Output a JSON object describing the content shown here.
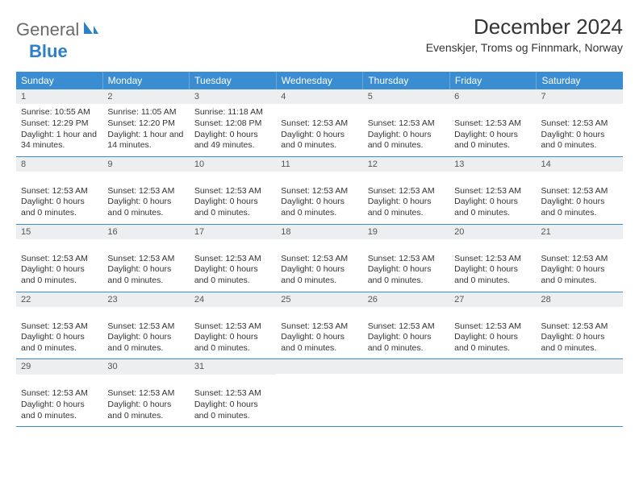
{
  "brand": {
    "word1": "General",
    "word2": "Blue"
  },
  "title": "December 2024",
  "subtitle": "Evenskjer, Troms og Finnmark, Norway",
  "colors": {
    "header_bg": "#3a8dd0",
    "header_text": "#ffffff",
    "daynum_bg": "#eceeef",
    "rule": "#3a8dd0",
    "brand_gray": "#6a6a6a",
    "brand_blue": "#2d7fc7",
    "body_text": "#333333",
    "page_bg": "#ffffff"
  },
  "typography": {
    "title_fontsize": 26,
    "subtitle_fontsize": 14,
    "dayhead_fontsize": 12,
    "cell_fontsize": 10.5,
    "logo_fontsize": 22
  },
  "day_names": [
    "Sunday",
    "Monday",
    "Tuesday",
    "Wednesday",
    "Thursday",
    "Friday",
    "Saturday"
  ],
  "weeks": [
    [
      {
        "n": "1",
        "lines": [
          "Sunrise: 10:55 AM",
          "Sunset: 12:29 PM",
          "Daylight: 1 hour and 34 minutes."
        ]
      },
      {
        "n": "2",
        "lines": [
          "Sunrise: 11:05 AM",
          "Sunset: 12:20 PM",
          "Daylight: 1 hour and 14 minutes."
        ]
      },
      {
        "n": "3",
        "lines": [
          "Sunrise: 11:18 AM",
          "Sunset: 12:08 PM",
          "Daylight: 0 hours and 49 minutes."
        ]
      },
      {
        "n": "4",
        "lines": [
          "",
          "Sunset: 12:53 AM",
          "Daylight: 0 hours and 0 minutes."
        ]
      },
      {
        "n": "5",
        "lines": [
          "",
          "Sunset: 12:53 AM",
          "Daylight: 0 hours and 0 minutes."
        ]
      },
      {
        "n": "6",
        "lines": [
          "",
          "Sunset: 12:53 AM",
          "Daylight: 0 hours and 0 minutes."
        ]
      },
      {
        "n": "7",
        "lines": [
          "",
          "Sunset: 12:53 AM",
          "Daylight: 0 hours and 0 minutes."
        ]
      }
    ],
    [
      {
        "n": "8",
        "lines": [
          "",
          "Sunset: 12:53 AM",
          "Daylight: 0 hours and 0 minutes."
        ]
      },
      {
        "n": "9",
        "lines": [
          "",
          "Sunset: 12:53 AM",
          "Daylight: 0 hours and 0 minutes."
        ]
      },
      {
        "n": "10",
        "lines": [
          "",
          "Sunset: 12:53 AM",
          "Daylight: 0 hours and 0 minutes."
        ]
      },
      {
        "n": "11",
        "lines": [
          "",
          "Sunset: 12:53 AM",
          "Daylight: 0 hours and 0 minutes."
        ]
      },
      {
        "n": "12",
        "lines": [
          "",
          "Sunset: 12:53 AM",
          "Daylight: 0 hours and 0 minutes."
        ]
      },
      {
        "n": "13",
        "lines": [
          "",
          "Sunset: 12:53 AM",
          "Daylight: 0 hours and 0 minutes."
        ]
      },
      {
        "n": "14",
        "lines": [
          "",
          "Sunset: 12:53 AM",
          "Daylight: 0 hours and 0 minutes."
        ]
      }
    ],
    [
      {
        "n": "15",
        "lines": [
          "",
          "Sunset: 12:53 AM",
          "Daylight: 0 hours and 0 minutes."
        ]
      },
      {
        "n": "16",
        "lines": [
          "",
          "Sunset: 12:53 AM",
          "Daylight: 0 hours and 0 minutes."
        ]
      },
      {
        "n": "17",
        "lines": [
          "",
          "Sunset: 12:53 AM",
          "Daylight: 0 hours and 0 minutes."
        ]
      },
      {
        "n": "18",
        "lines": [
          "",
          "Sunset: 12:53 AM",
          "Daylight: 0 hours and 0 minutes."
        ]
      },
      {
        "n": "19",
        "lines": [
          "",
          "Sunset: 12:53 AM",
          "Daylight: 0 hours and 0 minutes."
        ]
      },
      {
        "n": "20",
        "lines": [
          "",
          "Sunset: 12:53 AM",
          "Daylight: 0 hours and 0 minutes."
        ]
      },
      {
        "n": "21",
        "lines": [
          "",
          "Sunset: 12:53 AM",
          "Daylight: 0 hours and 0 minutes."
        ]
      }
    ],
    [
      {
        "n": "22",
        "lines": [
          "",
          "Sunset: 12:53 AM",
          "Daylight: 0 hours and 0 minutes."
        ]
      },
      {
        "n": "23",
        "lines": [
          "",
          "Sunset: 12:53 AM",
          "Daylight: 0 hours and 0 minutes."
        ]
      },
      {
        "n": "24",
        "lines": [
          "",
          "Sunset: 12:53 AM",
          "Daylight: 0 hours and 0 minutes."
        ]
      },
      {
        "n": "25",
        "lines": [
          "",
          "Sunset: 12:53 AM",
          "Daylight: 0 hours and 0 minutes."
        ]
      },
      {
        "n": "26",
        "lines": [
          "",
          "Sunset: 12:53 AM",
          "Daylight: 0 hours and 0 minutes."
        ]
      },
      {
        "n": "27",
        "lines": [
          "",
          "Sunset: 12:53 AM",
          "Daylight: 0 hours and 0 minutes."
        ]
      },
      {
        "n": "28",
        "lines": [
          "",
          "Sunset: 12:53 AM",
          "Daylight: 0 hours and 0 minutes."
        ]
      }
    ],
    [
      {
        "n": "29",
        "lines": [
          "",
          "Sunset: 12:53 AM",
          "Daylight: 0 hours and 0 minutes."
        ]
      },
      {
        "n": "30",
        "lines": [
          "",
          "Sunset: 12:53 AM",
          "Daylight: 0 hours and 0 minutes."
        ]
      },
      {
        "n": "31",
        "lines": [
          "",
          "Sunset: 12:53 AM",
          "Daylight: 0 hours and 0 minutes."
        ]
      },
      {
        "n": "",
        "lines": []
      },
      {
        "n": "",
        "lines": []
      },
      {
        "n": "",
        "lines": []
      },
      {
        "n": "",
        "lines": []
      }
    ]
  ]
}
